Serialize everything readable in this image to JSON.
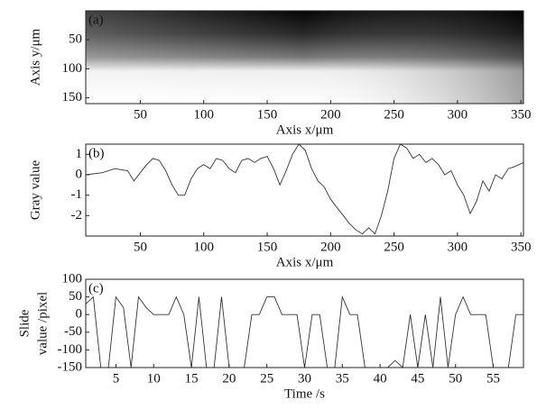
{
  "chart_data": [
    {
      "type": "image",
      "label": "(a)",
      "xlabel": "Axis x/μm",
      "ylabel": "Axis y/μm",
      "xlim": [
        7,
        352
      ],
      "ylim": [
        0,
        160
      ],
      "y_inverted": true,
      "xticks": [
        50,
        100,
        150,
        200,
        250,
        300,
        350
      ],
      "yticks": [
        50,
        100,
        150
      ]
    },
    {
      "type": "line",
      "label": "(b)",
      "xlabel": "Axis x/μm",
      "ylabel": "Gray value",
      "xlim": [
        7,
        352
      ],
      "ylim": [
        -3,
        1.5
      ],
      "xticks": [
        50,
        100,
        150,
        200,
        250,
        300,
        350
      ],
      "yticks": [
        -2,
        -1,
        0,
        1
      ],
      "color": "#333333",
      "x": [
        7,
        20,
        30,
        40,
        45,
        50,
        55,
        60,
        65,
        70,
        75,
        80,
        85,
        90,
        95,
        100,
        105,
        110,
        115,
        120,
        125,
        130,
        135,
        140,
        145,
        150,
        155,
        160,
        165,
        170,
        175,
        180,
        185,
        190,
        195,
        200,
        205,
        210,
        215,
        220,
        225,
        230,
        235,
        240,
        245,
        250,
        255,
        260,
        265,
        270,
        275,
        280,
        285,
        290,
        295,
        300,
        305,
        310,
        315,
        320,
        325,
        330,
        335,
        340,
        345,
        352
      ],
      "values": [
        0,
        0.1,
        0.3,
        0.2,
        -0.3,
        0.1,
        0.5,
        0.8,
        0.7,
        0.2,
        -0.5,
        -1.0,
        -1.0,
        -0.2,
        0.3,
        0.5,
        0.3,
        0.8,
        0.7,
        0.3,
        0.1,
        0.7,
        0.8,
        0.6,
        0.8,
        0.9,
        0.3,
        -0.5,
        0.2,
        1.0,
        1.5,
        1.2,
        0.3,
        -0.3,
        -0.6,
        -1.2,
        -1.6,
        -2.0,
        -2.4,
        -2.7,
        -2.9,
        -2.6,
        -2.9,
        -2.0,
        -0.8,
        0.8,
        1.5,
        1.3,
        0.8,
        1.0,
        0.6,
        0.8,
        0.5,
        0.0,
        0.2,
        -0.5,
        -1.0,
        -1.9,
        -1.3,
        -0.3,
        -0.8,
        0.0,
        -0.2,
        0.3,
        0.4,
        0.6
      ]
    },
    {
      "type": "line",
      "label": "(c)",
      "xlabel": "Time /s",
      "ylabel": [
        "Slide",
        "value /pixel"
      ],
      "xlim": [
        1,
        59
      ],
      "ylim": [
        -150,
        100
      ],
      "xticks": [
        5,
        10,
        15,
        20,
        25,
        30,
        35,
        40,
        45,
        50,
        55
      ],
      "yticks": [
        -150,
        -100,
        -50,
        0,
        50,
        100
      ],
      "color": "#333333",
      "x": [
        1,
        2,
        3,
        4,
        5,
        6,
        7,
        8,
        9,
        10,
        11,
        12,
        13,
        14,
        15,
        16,
        17,
        18,
        19,
        20,
        21,
        22,
        23,
        24,
        25,
        26,
        27,
        28,
        29,
        30,
        31,
        32,
        33,
        34,
        35,
        36,
        37,
        38,
        39,
        40,
        41,
        42,
        43,
        44,
        45,
        46,
        47,
        48,
        49,
        50,
        51,
        52,
        53,
        54,
        55,
        56,
        57,
        58,
        59
      ],
      "values": [
        30,
        50,
        -150,
        -150,
        50,
        20,
        -150,
        50,
        20,
        0,
        0,
        0,
        50,
        0,
        -150,
        50,
        -150,
        -150,
        50,
        -150,
        -150,
        -150,
        0,
        0,
        50,
        50,
        0,
        0,
        0,
        -150,
        0,
        0,
        -150,
        -150,
        50,
        0,
        0,
        -150,
        -150,
        -150,
        -150,
        -130,
        -150,
        0,
        -150,
        0,
        -150,
        50,
        -150,
        0,
        50,
        0,
        0,
        0,
        -150,
        -150,
        -150,
        0,
        0
      ]
    }
  ]
}
